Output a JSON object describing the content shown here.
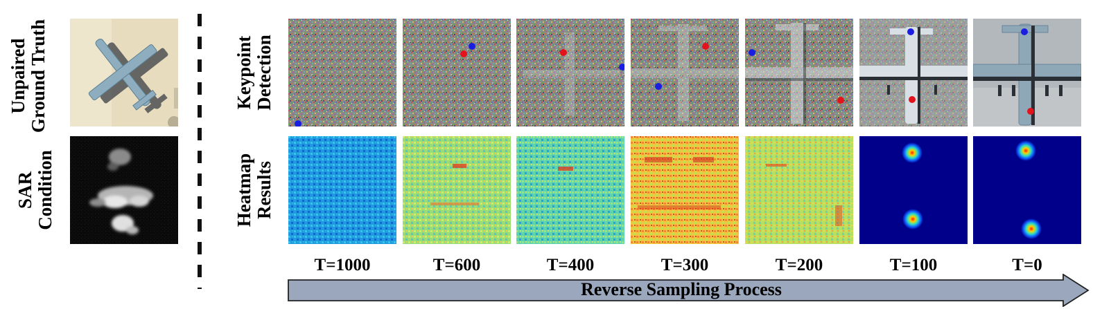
{
  "left_labels": {
    "gt": [
      "Unpaired",
      "Ground Truth"
    ],
    "sar": [
      "SAR",
      "Condition"
    ]
  },
  "row_labels": {
    "keypoint": [
      "Keypoint",
      "Detection"
    ],
    "heatmap": [
      "Heatmap",
      "Results"
    ]
  },
  "timesteps": [
    "T=1000",
    "T=600",
    "T=400",
    "T=300",
    "T=200",
    "T=100",
    "T=0"
  ],
  "arrow_label": "Reverse Sampling Process",
  "colors": {
    "keypoint_red": "#e3121b",
    "keypoint_blue": "#1a1ee0",
    "arrow_fill": "#9aa7bd",
    "heatmap_background": "#00008b"
  }
}
